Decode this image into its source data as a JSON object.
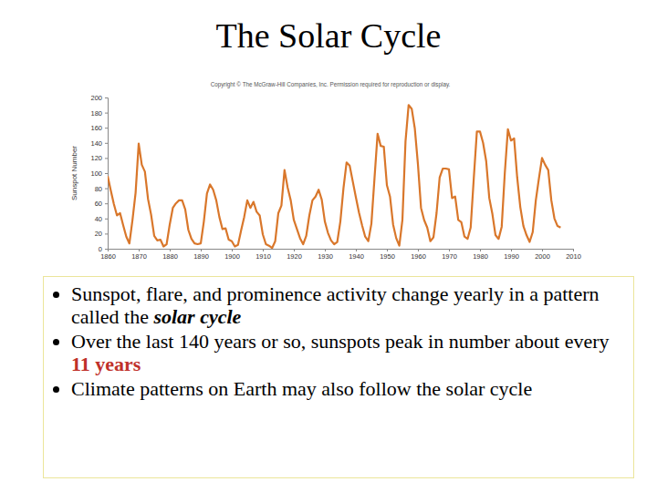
{
  "slide": {
    "title": "The Solar Cycle",
    "bullets": [
      [
        {
          "text": "Sunspot, flare, and prominence activity change yearly in a pattern called the "
        },
        {
          "text": "solar cycle",
          "style": "emphasis"
        }
      ],
      [
        {
          "text": "Over the last 140 years or so, sunspots peak in number about every "
        },
        {
          "text": "11 years",
          "style": "highlight"
        }
      ],
      [
        {
          "text": "Climate patterns on Earth may also follow the solar cycle"
        }
      ]
    ]
  },
  "chart_data": {
    "type": "line",
    "subtitle": "Copyright © The McGraw-Hill Companies, Inc. Permission required for reproduction or display.",
    "y_label": "Sunspot Number",
    "color": "#d9772b",
    "x": [
      1860,
      1861,
      1862,
      1863,
      1864,
      1865,
      1866,
      1867,
      1868,
      1869,
      1870,
      1871,
      1872,
      1873,
      1874,
      1875,
      1876,
      1877,
      1878,
      1879,
      1880,
      1881,
      1882,
      1883,
      1884,
      1885,
      1886,
      1887,
      1888,
      1889,
      1890,
      1891,
      1892,
      1893,
      1894,
      1895,
      1896,
      1897,
      1898,
      1899,
      1900,
      1901,
      1902,
      1903,
      1904,
      1905,
      1906,
      1907,
      1908,
      1909,
      1910,
      1911,
      1912,
      1913,
      1914,
      1915,
      1916,
      1917,
      1918,
      1919,
      1920,
      1921,
      1922,
      1923,
      1924,
      1925,
      1926,
      1927,
      1928,
      1929,
      1930,
      1931,
      1932,
      1933,
      1934,
      1935,
      1936,
      1937,
      1938,
      1939,
      1940,
      1941,
      1942,
      1943,
      1944,
      1945,
      1946,
      1947,
      1948,
      1949,
      1950,
      1951,
      1952,
      1953,
      1954,
      1955,
      1956,
      1957,
      1958,
      1959,
      1960,
      1961,
      1962,
      1963,
      1964,
      1965,
      1966,
      1967,
      1968,
      1969,
      1970,
      1971,
      1972,
      1973,
      1974,
      1975,
      1976,
      1977,
      1978,
      1979,
      1980,
      1981,
      1982,
      1983,
      1984,
      1985,
      1986,
      1987,
      1988,
      1989,
      1990,
      1991,
      1992,
      1993,
      1994,
      1995,
      1996,
      1997,
      1998,
      1999,
      2000,
      2001,
      2002,
      2003,
      2004,
      2005,
      2006
    ],
    "values": [
      96,
      77,
      59,
      44,
      47,
      31,
      16,
      7,
      38,
      74,
      139,
      111,
      102,
      66,
      45,
      17,
      11,
      12,
      3,
      6,
      32,
      54,
      60,
      64,
      64,
      52,
      25,
      13,
      7,
      6,
      7,
      36,
      73,
      85,
      78,
      64,
      42,
      26,
      27,
      12,
      10,
      3,
      5,
      24,
      42,
      64,
      54,
      62,
      49,
      44,
      19,
      6,
      4,
      1,
      10,
      47,
      57,
      104,
      81,
      64,
      38,
      26,
      14,
      6,
      17,
      44,
      64,
      69,
      78,
      65,
      36,
      21,
      11,
      6,
      9,
      36,
      80,
      114,
      110,
      89,
      68,
      48,
      31,
      16,
      10,
      33,
      93,
      152,
      136,
      135,
      84,
      69,
      32,
      14,
      4,
      38,
      142,
      190,
      185,
      159,
      112,
      54,
      38,
      28,
      10,
      15,
      47,
      94,
      106,
      106,
      105,
      67,
      69,
      38,
      35,
      16,
      13,
      28,
      93,
      155,
      155,
      140,
      116,
      67,
      46,
      18,
      13,
      29,
      100,
      158,
      143,
      146,
      94,
      55,
      30,
      18,
      9,
      22,
      64,
      93,
      120,
      111,
      104,
      64,
      40,
      30,
      28
    ],
    "xlim": [
      1860,
      2010
    ],
    "ylim": [
      0,
      200
    ],
    "xticks": [
      1860,
      1870,
      1880,
      1890,
      1900,
      1910,
      1920,
      1930,
      1940,
      1950,
      1960,
      1970,
      1980,
      1990,
      2000,
      2010
    ],
    "yticks": [
      0,
      20,
      40,
      60,
      80,
      100,
      120,
      140,
      160,
      180,
      200
    ],
    "grid": false
  }
}
